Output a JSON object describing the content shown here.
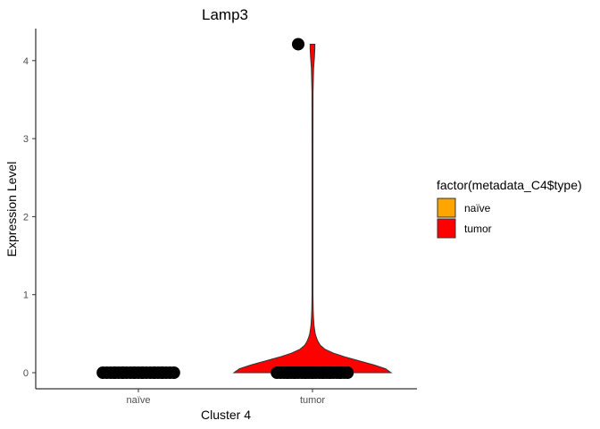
{
  "chart_data": {
    "type": "violin",
    "title": "Lamp3",
    "xlabel": "Cluster 4",
    "ylabel": "Expression Level",
    "categories": [
      "naïve",
      "tumor"
    ],
    "ylim": [
      0,
      4.2
    ],
    "yticks": [
      "0",
      "1",
      "2",
      "3",
      "4"
    ],
    "legend": {
      "title": "factor(metadata_C4$type)",
      "position": "right",
      "items": [
        {
          "label": "naïve",
          "color": "#FFA500"
        },
        {
          "label": "tumor",
          "color": "#FF0000"
        }
      ]
    },
    "series": [
      {
        "category": "naïve",
        "fill": "#FFA500",
        "points_y": [
          0,
          0,
          0,
          0,
          0,
          0,
          0,
          0,
          0,
          0,
          0,
          0,
          0,
          0,
          0,
          0,
          0,
          0,
          0,
          0,
          0,
          0,
          0,
          0,
          0
        ],
        "violin_profile": []
      },
      {
        "category": "tumor",
        "fill": "#FF0000",
        "points_y": [
          0,
          0,
          0,
          0,
          0,
          0,
          0,
          0,
          0,
          0,
          0,
          0,
          0,
          0,
          0,
          0,
          0,
          0,
          0,
          0,
          0,
          0,
          0,
          0,
          0,
          0,
          0,
          0,
          4.21
        ],
        "violin_profile": [
          [
            0.0,
            1.0
          ],
          [
            0.05,
            0.93
          ],
          [
            0.1,
            0.78
          ],
          [
            0.15,
            0.6
          ],
          [
            0.2,
            0.42
          ],
          [
            0.25,
            0.27
          ],
          [
            0.3,
            0.16
          ],
          [
            0.35,
            0.1
          ],
          [
            0.4,
            0.07
          ],
          [
            0.45,
            0.05
          ],
          [
            0.5,
            0.035
          ],
          [
            0.55,
            0.027
          ],
          [
            0.6,
            0.02
          ],
          [
            0.7,
            0.013
          ],
          [
            0.8,
            0.009
          ],
          [
            1.0,
            0.006
          ],
          [
            2.0,
            0.006
          ],
          [
            3.0,
            0.006
          ],
          [
            3.6,
            0.007
          ],
          [
            3.9,
            0.014
          ],
          [
            4.05,
            0.025
          ],
          [
            4.15,
            0.03
          ],
          [
            4.21,
            0.03
          ]
        ]
      }
    ]
  }
}
